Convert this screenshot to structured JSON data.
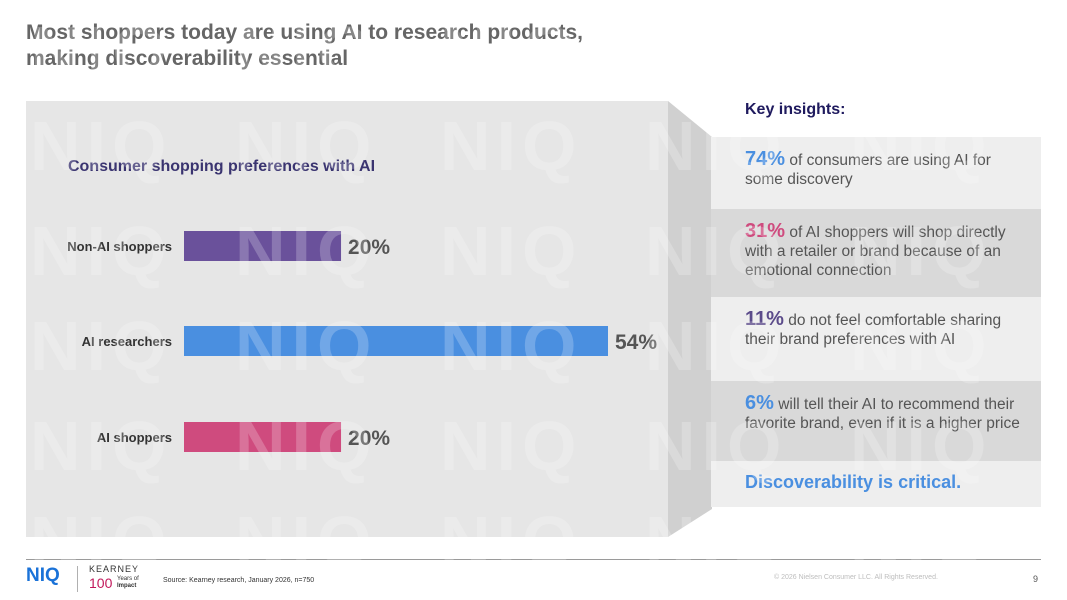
{
  "title": {
    "line1": "Most shoppers today are using AI to research products,",
    "line2": "making discoverability essential"
  },
  "chart_data": {
    "type": "bar",
    "orientation": "horizontal",
    "title": "Consumer shopping preferences with AI",
    "categories": [
      "Non-AI shoppers",
      "AI researchers",
      "AI shoppers"
    ],
    "values": [
      20,
      54,
      20
    ],
    "value_labels": [
      "20%",
      "54%",
      "20%"
    ],
    "bar_colors": [
      "#6a519b",
      "#4a8fe0",
      "#cf4b7e"
    ],
    "xlim": [
      0,
      54
    ],
    "grid": false,
    "legend": "none"
  },
  "insights": {
    "heading": "Key insights:",
    "items": [
      {
        "pct": "74%",
        "text": "of consumers are using AI for some discovery",
        "color": "#4a8fe0"
      },
      {
        "pct": "31%",
        "text": "of AI shoppers will shop directly with a retailer or brand because of an emotional connection",
        "color": "#cf4b7e"
      },
      {
        "pct": "11%",
        "text": "do not feel comfortable sharing their brand preferences with AI",
        "color": "#5b4b8a"
      },
      {
        "pct": "6%",
        "text": "will tell their AI to recommend their favorite brand, even if it is a higher price",
        "color": "#4a8fe0"
      }
    ],
    "conclusion": "Discoverability is critical."
  },
  "footer": {
    "logo_niq": "NIQ",
    "logo_kearney": "KEARNEY",
    "logo_100": "100",
    "logo_years_line1": "Years of",
    "logo_years_line2": "Impact",
    "source": "Source: Kearney research, January 2026, n=750",
    "copyright": "© 2026 Nielsen Consumer LLC. All Rights Reserved.",
    "page_number": "9"
  },
  "watermark_text": "NIQ",
  "colors": {
    "title": "#666666",
    "heading": "#1f1a5e",
    "accent_blue": "#4a8fe0"
  }
}
